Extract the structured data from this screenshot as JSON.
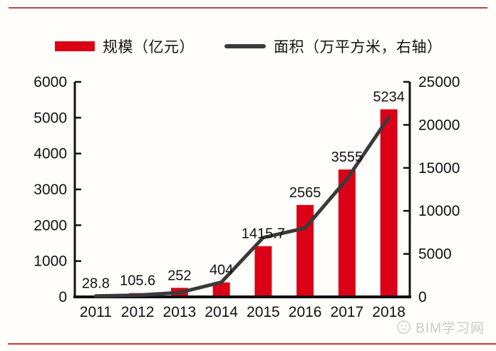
{
  "page": {
    "watermark": "BIM学习网"
  },
  "colors": {
    "bar_red": "#dc0016",
    "line_dark": "#3a3a3a",
    "axis_black": "#111111",
    "divider_top": "#b24a45",
    "divider_bottom": "#c23b31",
    "watermark_gray": "#c9c9c9"
  },
  "chart_data": {
    "type": "bar",
    "subtype": "combo-bar-line-dual-axis",
    "categories": [
      "2011",
      "2012",
      "2013",
      "2014",
      "2015",
      "2016",
      "2017",
      "2018"
    ],
    "series": [
      {
        "name": "规模（亿元）",
        "type": "bar",
        "axis": "left",
        "color": "#dc0016",
        "values": [
          28.8,
          105.6,
          252,
          404,
          1415.7,
          2565,
          3555,
          5234
        ],
        "labels": [
          "28.8",
          "105.6",
          "252",
          "404",
          "1415.7",
          "2565",
          "3555",
          "5234"
        ]
      },
      {
        "name": "面积（万平方米，右轴）",
        "type": "line",
        "axis": "right",
        "color": "#3a3a3a",
        "estimated": true,
        "values": [
          100,
          200,
          500,
          1700,
          6900,
          8000,
          13700,
          20900
        ]
      }
    ],
    "left_axis": {
      "min": 0,
      "max": 6000,
      "step": 1000,
      "ticks": [
        0,
        1000,
        2000,
        3000,
        4000,
        5000,
        6000
      ]
    },
    "right_axis": {
      "min": 0,
      "max": 25000,
      "step": 5000,
      "ticks": [
        0,
        5000,
        10000,
        15000,
        20000,
        25000
      ]
    },
    "title": "",
    "xlabel": "",
    "ylabel": "",
    "grid": false,
    "legend_position": "top"
  }
}
